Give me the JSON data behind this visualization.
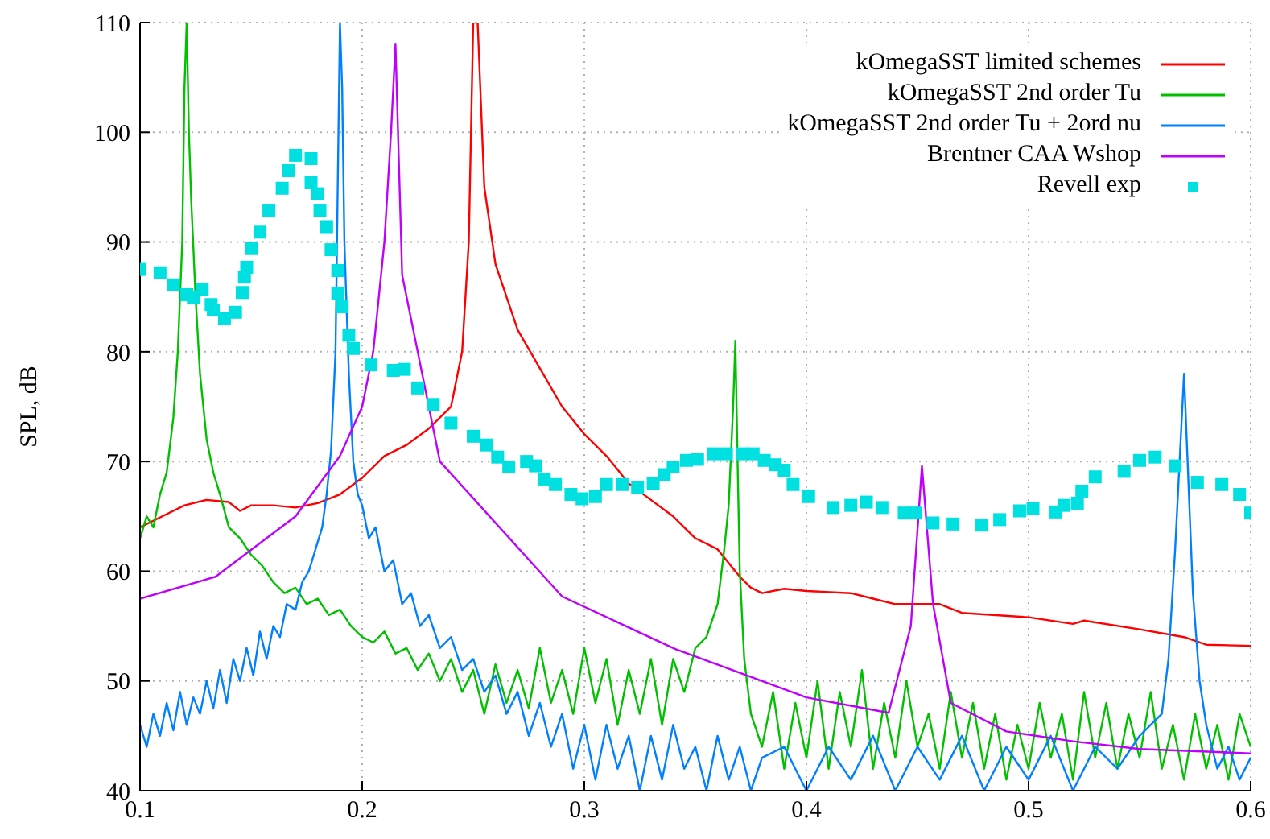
{
  "chart_data": {
    "type": "line",
    "ylabel": "SPL, dB",
    "xlim": [
      0.1,
      0.6
    ],
    "xticks": [
      0.1,
      0.2,
      0.3,
      0.4,
      0.5,
      0.6
    ],
    "ylim": [
      40,
      110
    ],
    "yticks": [
      40,
      50,
      60,
      70,
      80,
      90,
      100,
      110
    ],
    "grid": true,
    "legend": "top right",
    "series": [
      {
        "name": "kOmegaSST limited schemes",
        "color": "#ff0000",
        "marker": "none",
        "x": [
          0.1,
          0.11,
          0.12,
          0.13,
          0.14,
          0.145,
          0.15,
          0.16,
          0.17,
          0.18,
          0.19,
          0.2,
          0.21,
          0.22,
          0.23,
          0.24,
          0.245,
          0.248,
          0.25,
          0.252,
          0.255,
          0.26,
          0.27,
          0.28,
          0.29,
          0.3,
          0.31,
          0.32,
          0.33,
          0.34,
          0.35,
          0.36,
          0.37,
          0.375,
          0.38,
          0.39,
          0.4,
          0.42,
          0.43,
          0.44,
          0.46,
          0.47,
          0.5,
          0.52,
          0.525,
          0.55,
          0.57,
          0.58,
          0.6
        ],
        "values": [
          64,
          65,
          66,
          66.5,
          66.3,
          65.5,
          66,
          66,
          65.8,
          66.2,
          67,
          68.5,
          70.5,
          71.5,
          73,
          75,
          80,
          90,
          110,
          110,
          95,
          88,
          82,
          78.5,
          75,
          72.5,
          70.5,
          68,
          66.5,
          65,
          63,
          62,
          59.5,
          58.5,
          58,
          58.4,
          58.2,
          58,
          57.5,
          57,
          57,
          56.2,
          55.8,
          55.2,
          55.5,
          54.7,
          54,
          53.3,
          53.2
        ]
      },
      {
        "name": "kOmegaSST 2nd order Tu",
        "color": "#00c000",
        "marker": "none",
        "x": [
          0.1,
          0.103,
          0.106,
          0.109,
          0.112,
          0.115,
          0.117,
          0.119,
          0.12,
          0.121,
          0.122,
          0.123,
          0.125,
          0.127,
          0.13,
          0.133,
          0.136,
          0.14,
          0.145,
          0.15,
          0.155,
          0.16,
          0.165,
          0.17,
          0.175,
          0.18,
          0.185,
          0.19,
          0.195,
          0.2,
          0.205,
          0.21,
          0.215,
          0.22,
          0.225,
          0.23,
          0.235,
          0.24,
          0.245,
          0.25,
          0.255,
          0.26,
          0.265,
          0.27,
          0.275,
          0.28,
          0.285,
          0.29,
          0.295,
          0.3,
          0.305,
          0.31,
          0.315,
          0.32,
          0.325,
          0.33,
          0.335,
          0.34,
          0.345,
          0.35,
          0.355,
          0.36,
          0.363,
          0.365,
          0.367,
          0.368,
          0.369,
          0.37,
          0.372,
          0.375,
          0.38,
          0.385,
          0.39,
          0.395,
          0.4,
          0.405,
          0.41,
          0.415,
          0.42,
          0.425,
          0.43,
          0.435,
          0.44,
          0.445,
          0.45,
          0.455,
          0.46,
          0.465,
          0.47,
          0.475,
          0.48,
          0.485,
          0.49,
          0.495,
          0.5,
          0.505,
          0.51,
          0.515,
          0.52,
          0.525,
          0.53,
          0.535,
          0.54,
          0.545,
          0.55,
          0.555,
          0.56,
          0.565,
          0.57,
          0.575,
          0.58,
          0.585,
          0.59,
          0.595,
          0.6
        ],
        "values": [
          63,
          65,
          64,
          67,
          69,
          74,
          80,
          90,
          104,
          110,
          100,
          94,
          85,
          78,
          72,
          69,
          67,
          64,
          63,
          61.5,
          60.5,
          59,
          58,
          58.5,
          57,
          57.5,
          56,
          56.5,
          55,
          54,
          53.5,
          54.5,
          52.5,
          53,
          51,
          52.5,
          50,
          52,
          49,
          51,
          47,
          51.5,
          48,
          51,
          47.5,
          53,
          48,
          51,
          47,
          53,
          48,
          52,
          46,
          51,
          47,
          52,
          46,
          52,
          49,
          53,
          54,
          57,
          62,
          66,
          75,
          81,
          70,
          60,
          52,
          47,
          44,
          49,
          42,
          48,
          43,
          50,
          42,
          49,
          44,
          51,
          42,
          48,
          43,
          50,
          44,
          47,
          42,
          49,
          43,
          48,
          42,
          47,
          41,
          46,
          42,
          48,
          43,
          47,
          41,
          49,
          43,
          48,
          42,
          47,
          43,
          49,
          42,
          46,
          41,
          47,
          42,
          46,
          41,
          47,
          44
        ]
      },
      {
        "name": "kOmegaSST 2nd order Tu + 2ord nu",
        "color": "#0080ff",
        "marker": "none",
        "x": [
          0.1,
          0.103,
          0.106,
          0.109,
          0.112,
          0.115,
          0.118,
          0.121,
          0.124,
          0.127,
          0.13,
          0.133,
          0.136,
          0.139,
          0.142,
          0.145,
          0.148,
          0.151,
          0.154,
          0.157,
          0.16,
          0.163,
          0.166,
          0.17,
          0.173,
          0.176,
          0.179,
          0.182,
          0.184,
          0.186,
          0.188,
          0.189,
          0.19,
          0.191,
          0.192,
          0.194,
          0.196,
          0.198,
          0.2,
          0.203,
          0.206,
          0.21,
          0.214,
          0.218,
          0.222,
          0.226,
          0.23,
          0.235,
          0.24,
          0.245,
          0.25,
          0.255,
          0.26,
          0.265,
          0.27,
          0.275,
          0.28,
          0.285,
          0.29,
          0.295,
          0.3,
          0.305,
          0.31,
          0.315,
          0.32,
          0.325,
          0.33,
          0.335,
          0.34,
          0.345,
          0.35,
          0.355,
          0.36,
          0.365,
          0.37,
          0.375,
          0.38,
          0.39,
          0.4,
          0.41,
          0.42,
          0.43,
          0.44,
          0.45,
          0.46,
          0.47,
          0.48,
          0.49,
          0.5,
          0.51,
          0.52,
          0.53,
          0.54,
          0.55,
          0.555,
          0.56,
          0.563,
          0.566,
          0.568,
          0.57,
          0.572,
          0.574,
          0.577,
          0.58,
          0.585,
          0.59,
          0.595,
          0.6
        ],
        "values": [
          46,
          44,
          47,
          45,
          48,
          45.5,
          49,
          46,
          48.5,
          47,
          50,
          47.5,
          51,
          48,
          52,
          50,
          53,
          50.5,
          54.5,
          52,
          55,
          54,
          57,
          56.5,
          59,
          60,
          62,
          64,
          67,
          71,
          80,
          95,
          110,
          104,
          90,
          78,
          70,
          67,
          66,
          63,
          64,
          60,
          61,
          57,
          58,
          55,
          56,
          53,
          54,
          51,
          52,
          49,
          50.5,
          47,
          49,
          45,
          48,
          44,
          47,
          42,
          46,
          41,
          46,
          42,
          45,
          40,
          45,
          41,
          46,
          42,
          44,
          40,
          45,
          41,
          44,
          40,
          43,
          44,
          40,
          44,
          41,
          45,
          40,
          44,
          41,
          45,
          40,
          44,
          41,
          45,
          40,
          44,
          42,
          45,
          46,
          47,
          52,
          62,
          70,
          78,
          68,
          58,
          50,
          46,
          42,
          44,
          41,
          43
        ]
      },
      {
        "name": "Brentner CAA Wshop",
        "color": "#c000ff",
        "marker": "none",
        "x": [
          0.1,
          0.134,
          0.17,
          0.19,
          0.2,
          0.205,
          0.21,
          0.213,
          0.215,
          0.218,
          0.235,
          0.29,
          0.341,
          0.4,
          0.437,
          0.447,
          0.452,
          0.457,
          0.465,
          0.49,
          0.52,
          0.55,
          0.6
        ],
        "values": [
          57.5,
          59.5,
          65,
          70.5,
          75,
          80,
          90,
          100,
          108,
          87,
          70,
          57.7,
          52.9,
          48.5,
          47.1,
          55,
          69.6,
          57,
          48,
          45.4,
          44.5,
          43.8,
          43.4
        ]
      },
      {
        "name": "Revell exp",
        "type": "scatter",
        "color": "#00e0e0",
        "marker": "square",
        "x": [
          0.1,
          0.109,
          0.115,
          0.121,
          0.124,
          0.128,
          0.132,
          0.133,
          0.138,
          0.143,
          0.146,
          0.147,
          0.148,
          0.15,
          0.154,
          0.158,
          0.164,
          0.167,
          0.17,
          0.177,
          0.177,
          0.18,
          0.181,
          0.184,
          0.186,
          0.189,
          0.189,
          0.191,
          0.194,
          0.196,
          0.204,
          0.214,
          0.219,
          0.225,
          0.232,
          0.24,
          0.25,
          0.256,
          0.261,
          0.266,
          0.274,
          0.278,
          0.282,
          0.287,
          0.294,
          0.299,
          0.305,
          0.31,
          0.317,
          0.324,
          0.331,
          0.336,
          0.34,
          0.346,
          0.351,
          0.358,
          0.364,
          0.371,
          0.376,
          0.381,
          0.386,
          0.39,
          0.394,
          0.401,
          0.412,
          0.42,
          0.427,
          0.434,
          0.444,
          0.449,
          0.457,
          0.466,
          0.479,
          0.487,
          0.496,
          0.502,
          0.512,
          0.516,
          0.522,
          0.524,
          0.53,
          0.543,
          0.55,
          0.557,
          0.566,
          0.576,
          0.587,
          0.595,
          0.6
        ],
        "values": [
          87.5,
          87.2,
          86.1,
          85.2,
          84.9,
          85.7,
          84.3,
          83.8,
          83,
          83.6,
          85.4,
          86.8,
          87.7,
          89.4,
          90.9,
          92.9,
          94.9,
          96.5,
          97.9,
          97.6,
          95.4,
          94.4,
          92.9,
          91.4,
          89.3,
          87.4,
          85.3,
          84.1,
          81.5,
          80.3,
          78.8,
          78.3,
          78.4,
          76.7,
          75.2,
          73.5,
          72.3,
          71.5,
          70.4,
          69.5,
          70,
          69.6,
          68.4,
          67.9,
          67,
          66.6,
          66.8,
          67.9,
          67.9,
          67.6,
          68,
          68.8,
          69.5,
          70.1,
          70.2,
          70.7,
          70.7,
          70.7,
          70.7,
          70.1,
          69.7,
          69.2,
          67.9,
          66.8,
          65.8,
          66,
          66.3,
          65.8,
          65.3,
          65.3,
          64.4,
          64.3,
          64.2,
          64.7,
          65.5,
          65.7,
          65.4,
          66,
          66.2,
          67.3,
          68.6,
          69.1,
          70.1,
          70.4,
          69.6,
          68.1,
          67.9,
          67,
          65.3
        ]
      }
    ]
  }
}
